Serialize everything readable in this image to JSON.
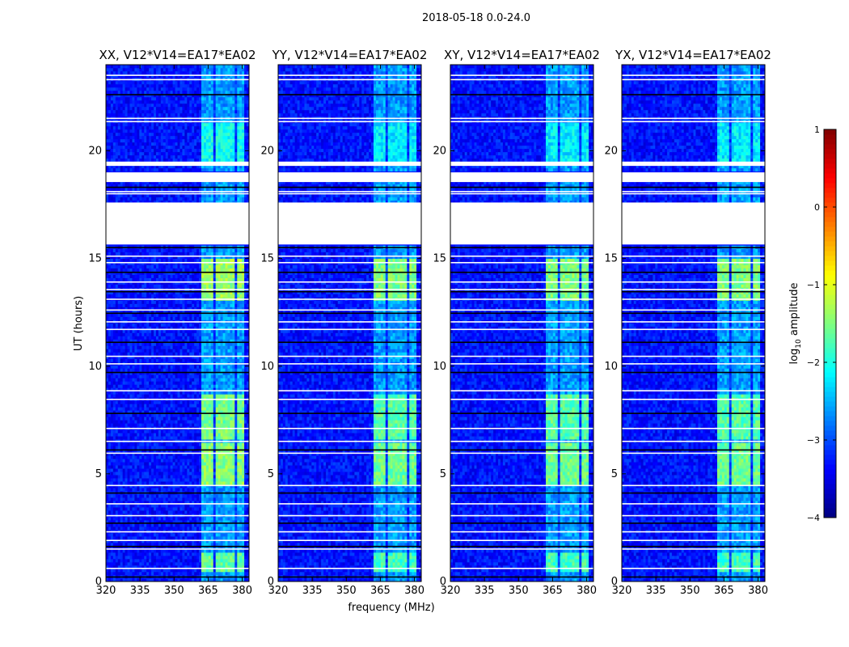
{
  "figure": {
    "suptitle": "2018-05-18 0.0-24.0",
    "xlabel": "frequency (MHz)",
    "ylabel": "UT (hours)",
    "colorbar_label_prefix": "log",
    "colorbar_label_sub": "10",
    "colorbar_label_suffix": " amplitude"
  },
  "chart_data": {
    "type": "heatmap",
    "title": "2018-05-18 0.0-24.0",
    "xlabel": "frequency (MHz)",
    "ylabel": "UT (hours)",
    "xlim": [
      320,
      383
    ],
    "ylim": [
      0,
      24
    ],
    "x_ticks": [
      320,
      335,
      350,
      365,
      380
    ],
    "x_tick_labels": [
      "320",
      "335",
      "350",
      "365",
      "380"
    ],
    "y_ticks": [
      0,
      5,
      10,
      15,
      20
    ],
    "y_tick_labels": [
      "0",
      "5",
      "10",
      "15",
      "20"
    ],
    "colorbar": {
      "label": "log10 amplitude",
      "range": [
        -4,
        1
      ],
      "ticks": [
        1,
        0,
        -1,
        -2,
        -3,
        -4
      ],
      "tick_labels": [
        "1",
        "0",
        "−1",
        "−2",
        "−3",
        "−4"
      ],
      "colormap": [
        "#00007f",
        "#0000ff",
        "#007fff",
        "#00ffff",
        "#7fff7f",
        "#ffff00",
        "#ff7f00",
        "#ff0000",
        "#7f0000"
      ]
    },
    "panels": [
      {
        "title": "XX, V12*V14=EA17*EA02",
        "pol": "XX"
      },
      {
        "title": "YY, V12*V14=EA17*EA02",
        "pol": "YY"
      },
      {
        "title": "XY, V12*V14=EA17*EA02",
        "pol": "XY"
      },
      {
        "title": "YX, V12*V14=EA17*EA02",
        "pol": "YX"
      }
    ],
    "background_log_amplitude": -3.3,
    "rfi_band_mhz": [
      362.5,
      380.5
    ],
    "rfi_channel_gaps_mhz": [
      [
        367.0,
        368.0
      ],
      [
        372.0,
        373.0
      ],
      [
        376.5,
        377.5
      ]
    ],
    "flagged_ut_ranges": [
      [
        15.65,
        17.6
      ],
      [
        18.55,
        19.0
      ],
      [
        19.3,
        19.5
      ]
    ],
    "flagged_ut_lines": [
      0.2,
      0.6,
      1.5,
      1.62,
      1.9,
      2.3,
      2.7,
      3.05,
      3.6,
      4.1,
      4.45,
      5.95,
      6.1,
      6.5,
      7.1,
      7.8,
      8.45,
      8.85,
      9.7,
      10.1,
      10.45,
      11.1,
      11.7,
      12.05,
      12.45,
      12.6,
      13.1,
      13.45,
      13.55,
      13.9,
      14.35,
      14.8,
      15.1,
      15.5,
      18.0,
      18.1,
      18.3,
      21.35,
      21.5,
      22.6,
      23.3,
      23.5
    ],
    "features": [
      {
        "ut_range": [
          13.0,
          15.0
        ],
        "log_amplitude": -1.5
      },
      {
        "ut_range": [
          4.5,
          6.5
        ],
        "log_amplitude": -1.6
      },
      {
        "ut_range": [
          6.6,
          8.7
        ],
        "log_amplitude": -1.7
      },
      {
        "ut_range": [
          0.4,
          1.4
        ],
        "log_amplitude": -1.8
      },
      {
        "ut_range": [
          19.5,
          21.3
        ],
        "log_amplitude": -2.2
      }
    ]
  }
}
